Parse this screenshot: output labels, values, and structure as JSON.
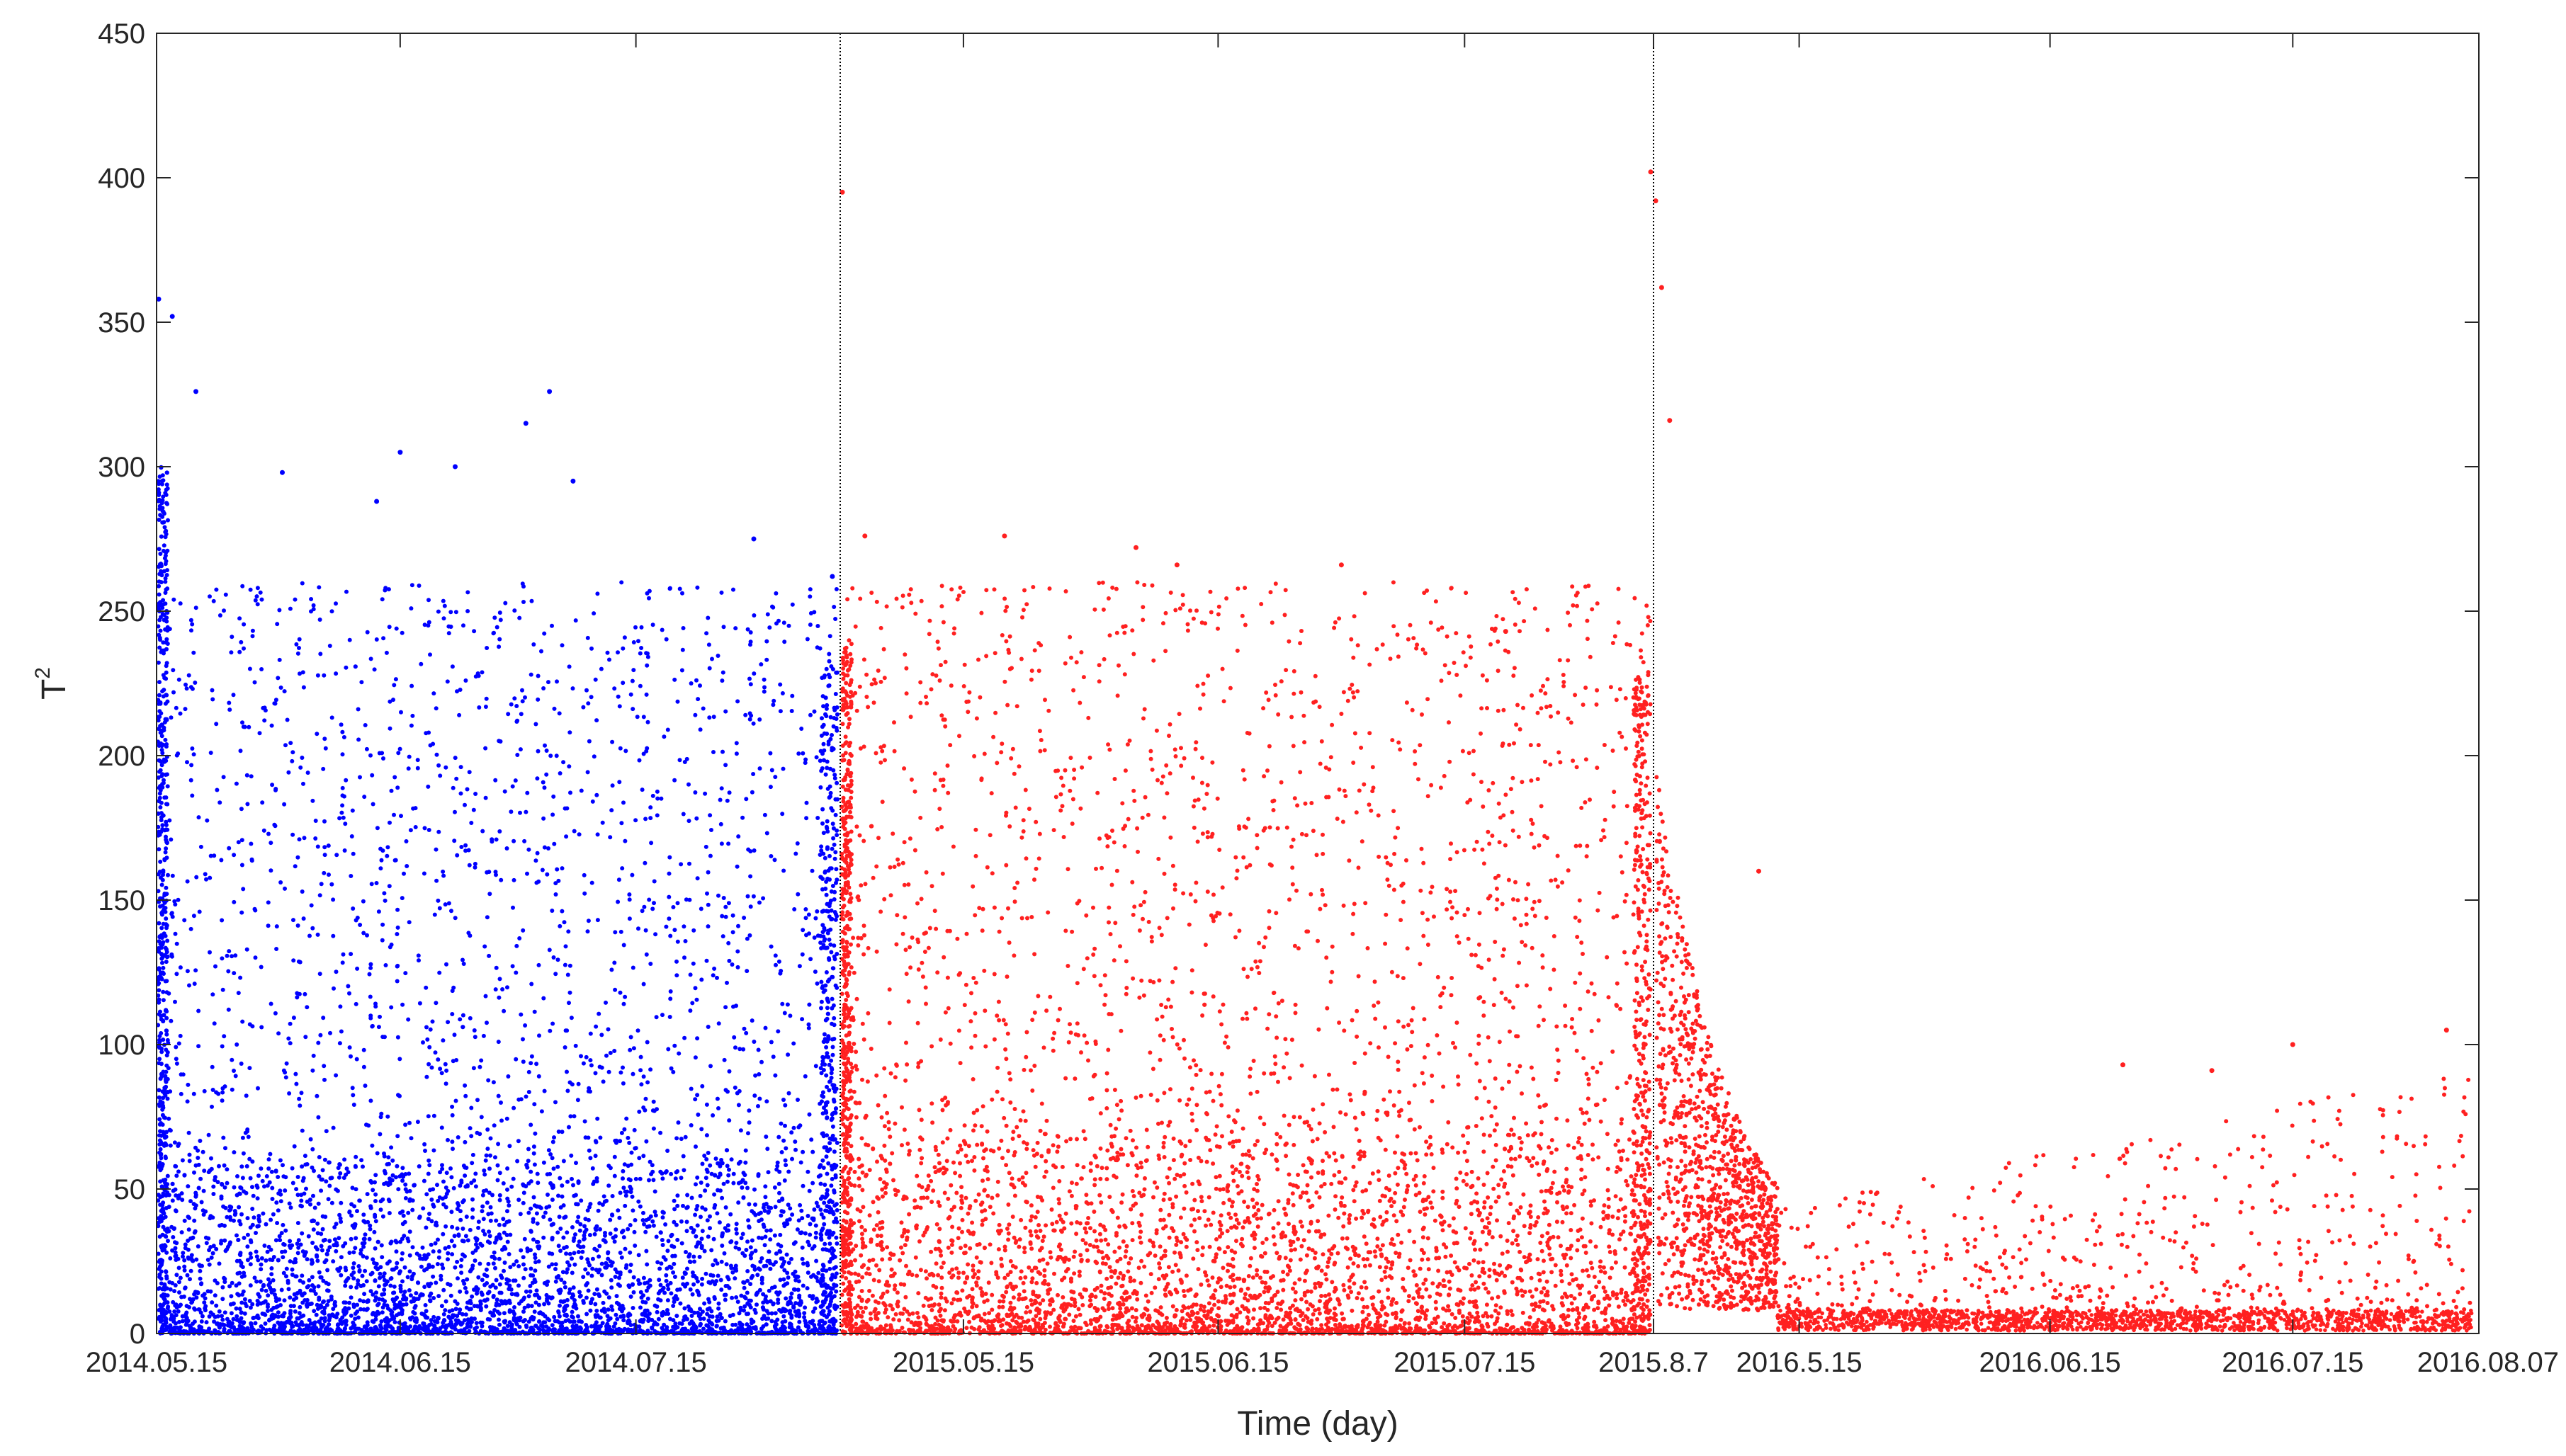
{
  "chart_data": {
    "type": "scatter",
    "title": "",
    "xlabel": "Time (day)",
    "ylabel_base": "T",
    "ylabel_superscript": "2",
    "ylim": [
      0,
      450
    ],
    "yticks": [
      0,
      50,
      100,
      150,
      200,
      250,
      300,
      350,
      400,
      450
    ],
    "grid": false,
    "legend": "none",
    "x_axis_note": "piecewise date axis: three concatenated periods separated by vertical dotted lines",
    "segments": [
      {
        "period": "2014",
        "start": "2014.05.15",
        "end": "2014.08.10",
        "color": "#0000ff",
        "tick_labels": [
          "2014.05.15",
          "2014.06.15",
          "2014.07.15"
        ],
        "baseline_range_approx": [
          0,
          60
        ],
        "upper_points_approx": [
          {
            "date": "2014.05.15",
            "value": 358
          },
          {
            "date": "2014.05.17",
            "value": 352
          },
          {
            "date": "2014.05.20",
            "value": 326
          },
          {
            "date": "2014.05.31",
            "value": 298
          },
          {
            "date": "2014.06.12",
            "value": 288
          },
          {
            "date": "2014.06.15",
            "value": 305
          },
          {
            "date": "2014.06.22",
            "value": 300
          },
          {
            "date": "2014.07.01",
            "value": 315
          },
          {
            "date": "2014.07.04",
            "value": 326
          },
          {
            "date": "2014.07.07",
            "value": 295
          },
          {
            "date": "2014.07.30",
            "value": 275
          },
          {
            "date": "2014.08.09",
            "value": 262
          }
        ]
      },
      {
        "period": "2015",
        "start": "2015.04.30",
        "end": "2015.08.07",
        "color": "#ff2020",
        "tick_labels": [
          "2015.05.15",
          "2015.06.15",
          "2015.07.15",
          "2015.8.7"
        ],
        "baseline_range_approx": [
          0,
          70
        ],
        "upper_points_approx": [
          {
            "date": "2015.04.30",
            "value": 395
          },
          {
            "date": "2015.05.03",
            "value": 276
          },
          {
            "date": "2015.05.20",
            "value": 276
          },
          {
            "date": "2015.06.05",
            "value": 272
          },
          {
            "date": "2015.06.10",
            "value": 266
          },
          {
            "date": "2015.06.30",
            "value": 266
          },
          {
            "date": "2015.07.20",
            "value": 243
          },
          {
            "date": "2015.08.07",
            "value": 402
          }
        ]
      },
      {
        "period": "2016",
        "start": "2016.04.27",
        "end": "2016.08.07",
        "color": "#ff2020",
        "tick_labels": [
          "2016.5.15",
          "2016.06.15",
          "2016.07.15",
          "2016.08.07"
        ],
        "baseline_range_approx": [
          0,
          10
        ],
        "upper_points_approx": [
          {
            "date": "2016.04.27",
            "value": 392
          },
          {
            "date": "2016.04.28",
            "value": 362
          },
          {
            "date": "2016.04.29",
            "value": 316
          },
          {
            "date": "2016.05.10",
            "value": 160
          },
          {
            "date": "2016.06.24",
            "value": 93
          },
          {
            "date": "2016.07.05",
            "value": 91
          },
          {
            "date": "2016.07.15",
            "value": 100
          },
          {
            "date": "2016.08.03",
            "value": 105
          }
        ]
      }
    ]
  }
}
